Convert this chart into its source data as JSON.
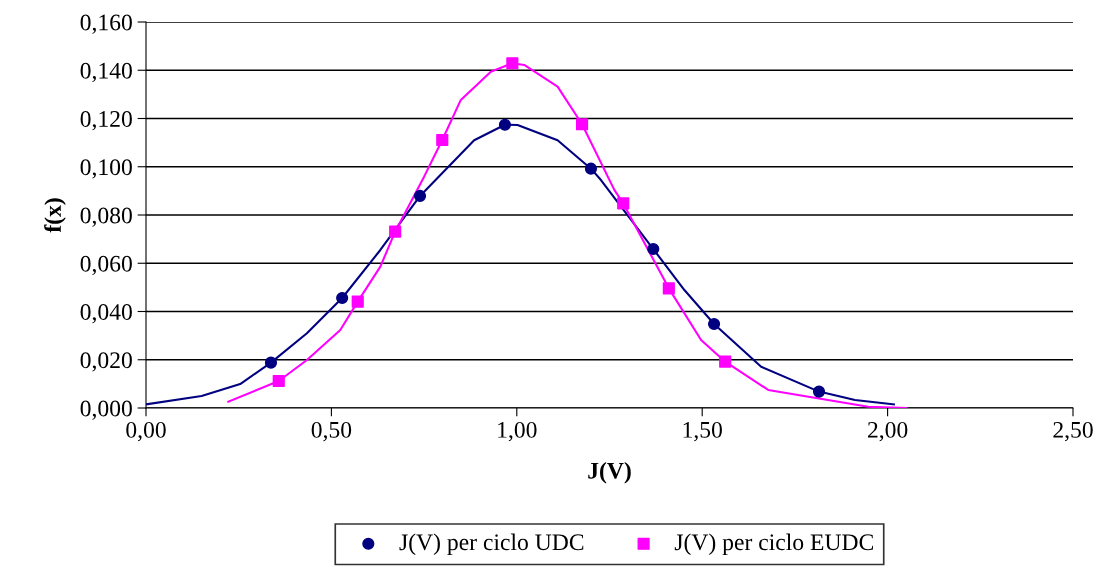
{
  "chart_data": {
    "type": "line",
    "xlabel": "J(V)",
    "ylabel": "f(x)",
    "xlim": [
      0,
      2.5
    ],
    "ylim": [
      0,
      0.16
    ],
    "xticks": [
      {
        "value": 0,
        "label": "0,00"
      },
      {
        "value": 0.5,
        "label": "0,50"
      },
      {
        "value": 1.0,
        "label": "1,00"
      },
      {
        "value": 1.5,
        "label": "1,50"
      },
      {
        "value": 2.0,
        "label": "2,00"
      },
      {
        "value": 2.5,
        "label": "2,50"
      }
    ],
    "yticks": [
      {
        "value": 0,
        "label": "0,000"
      },
      {
        "value": 0.02,
        "label": "0,020"
      },
      {
        "value": 0.04,
        "label": "0,040"
      },
      {
        "value": 0.06,
        "label": "0,060"
      },
      {
        "value": 0.08,
        "label": "0,080"
      },
      {
        "value": 0.1,
        "label": "0,100"
      },
      {
        "value": 0.12,
        "label": "0,120"
      },
      {
        "value": 0.14,
        "label": "0,140"
      },
      {
        "value": 0.16,
        "label": "0,160"
      }
    ],
    "grid": "y",
    "legend": "bottom",
    "series": [
      {
        "color": "#000080",
        "marker": "none",
        "x": [
          0,
          0.15,
          0.254,
          0.337,
          0.434,
          0.529,
          0.632,
          0.739,
          0.885,
          0.968,
          1.002,
          1.11,
          1.2,
          1.227,
          1.368,
          1.452,
          1.532,
          1.659,
          1.815,
          1.912,
          2.017
        ],
        "values": [
          0.0015,
          0.005,
          0.0099,
          0.0188,
          0.031,
          0.0456,
          0.0655,
          0.0879,
          0.111,
          0.1174,
          0.1173,
          0.111,
          0.0992,
          0.0945,
          0.0659,
          0.0489,
          0.0348,
          0.0171,
          0.0068,
          0.0033,
          0.0015
        ]
      },
      {
        "color": "#ff00ff",
        "marker": "none",
        "x": [
          0.222,
          0.358,
          0.434,
          0.524,
          0.571,
          0.632,
          0.672,
          0.75,
          0.799,
          0.849,
          0.93,
          0.988,
          1.02,
          1.11,
          1.176,
          1.263,
          1.287,
          1.41,
          1.497,
          1.562,
          1.678,
          1.948,
          2.051
        ],
        "values": [
          0.0026,
          0.0112,
          0.0199,
          0.0323,
          0.0441,
          0.0586,
          0.0731,
          0.0959,
          0.1111,
          0.1277,
          0.1394,
          0.1429,
          0.1422,
          0.1332,
          0.1176,
          0.0904,
          0.0848,
          0.0496,
          0.0282,
          0.0192,
          0.0075,
          0.0005,
          0.0
        ]
      },
      {
        "type": "scatter",
        "name": "J(V) per ciclo UDC",
        "color": "#000080",
        "marker": "circle",
        "x": [
          0.337,
          0.529,
          0.739,
          0.968,
          1.2,
          1.368,
          1.532,
          1.815
        ],
        "values": [
          0.0188,
          0.0456,
          0.0879,
          0.1174,
          0.0992,
          0.0659,
          0.0348,
          0.0068
        ]
      },
      {
        "type": "scatter",
        "name": "J(V) per ciclo EUDC",
        "color": "#ff00ff",
        "marker": "square",
        "x": [
          0.358,
          0.571,
          0.672,
          0.799,
          0.988,
          1.176,
          1.287,
          1.41,
          1.562
        ],
        "values": [
          0.0112,
          0.0441,
          0.0731,
          0.1111,
          0.1429,
          0.1176,
          0.0848,
          0.0496,
          0.0192
        ]
      }
    ]
  }
}
